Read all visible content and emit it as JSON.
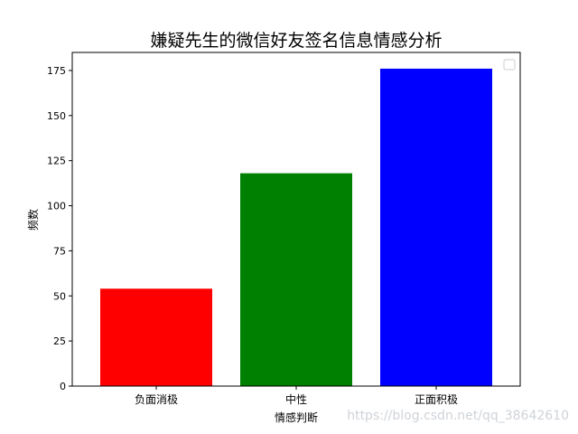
{
  "chart_data": {
    "type": "bar",
    "title": "嫌疑先生的微信好友签名信息情感分析",
    "xlabel": "情感判断",
    "ylabel": "频数",
    "categories": [
      "负面消极",
      "中性",
      "正面积极"
    ],
    "values": [
      54,
      118,
      176
    ],
    "colors": [
      "#ff0000",
      "#008000",
      "#0000ff"
    ],
    "ylim": [
      0,
      185
    ],
    "yticks": [
      0,
      25,
      50,
      75,
      100,
      125,
      150,
      175
    ],
    "grid": false,
    "legend": "top-right (empty)"
  },
  "watermark": "https://blog.csdn.net/qq_38642610"
}
